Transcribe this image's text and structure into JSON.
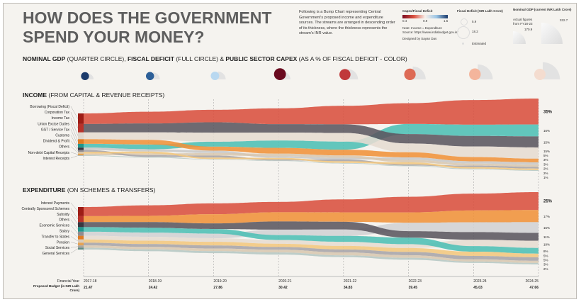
{
  "title": "HOW DOES THE GOVERNMENT SPEND YOUR MONEY?",
  "description": "Following is a Bump Chart representing Central Government's proposed income and expenditure sources. The streams are arranged in descending order of its thickness, where the thickness represents the stream's INR value.",
  "legend": {
    "capex_title": "Capex/Fiscal Deficit",
    "capex_ticks": [
      "0.4",
      "0.9",
      "1.5"
    ],
    "note": "Note: Income = Expenditure",
    "source": "Source: https://www.indiabudget.gov.in/",
    "designer": "Designed by Sayan Das",
    "deficit_title": "Fiscal Deficit (INR Lakh Crore)",
    "deficit_small": "5.9",
    "deficit_large": "18.2",
    "estimated": "Estimated",
    "gdp_title": "Nominal GDP (current INR Lakh Crore)",
    "gdp_note": "Actual figures from FY18-23",
    "gdp_small": "170.9",
    "gdp_large": "332.7"
  },
  "indicator_heading": {
    "b1": "NOMINAL GDP",
    "t1": " (QUARTER CIRCLE), ",
    "b2": "FISCAL DEFICIT",
    "t2": " (FULL CIRCLE) & ",
    "b3": "PUBLIC SECTOR CAPEX",
    "t3": " (AS A % OF FISCAL DEFICIT - COLOR)"
  },
  "indicators": {
    "fiscal_deficit": [
      5.9,
      6.2,
      7.0,
      18.2,
      15.1,
      16.6,
      17.3,
      16.1
    ],
    "nominal_gdp": [
      170.9,
      188.9,
      201.0,
      198.0,
      234.7,
      272.4,
      301.8,
      332.7
    ],
    "capex_colors": [
      "#1b3a6b",
      "#2c5f98",
      "#b9d8f0",
      "#6a0a1f",
      "#c0393b",
      "#dd6a55",
      "#f4b59c",
      "#f4dccf"
    ]
  },
  "chart_data": [
    {
      "type": "bump",
      "heading_bold": "INCOME",
      "heading_rest": " (FROM CAPITAL & REVENUE RECEIPTS)",
      "categories": [
        "2017-18",
        "2018-19",
        "2019-20",
        "2020-21",
        "2021-22",
        "2022-23",
        "2023-24",
        "2024-25"
      ],
      "series": [
        {
          "name": "Borrowing (Fiscal Deficit)",
          "color": "#d9503f",
          "lcolor": "#9d1d16",
          "values": [
            25,
            25,
            25,
            30,
            32,
            33,
            35,
            35
          ],
          "end_label": "35%"
        },
        {
          "name": "Corporation Tax",
          "color": "#5b5660",
          "lcolor": "#b8322a",
          "values": [
            20,
            19,
            21,
            16,
            15,
            15,
            15,
            15
          ],
          "end_label": "15%"
        },
        {
          "name": "Income Tax",
          "color": "#e6dcd1",
          "lcolor": "#e0d6cc",
          "values": [
            16,
            16,
            18,
            15,
            15,
            14,
            15,
            15
          ],
          "end_label": "15%"
        },
        {
          "name": "Union Excise Duties",
          "color": "#f0923a",
          "lcolor": "#e07b22",
          "values": [
            11,
            10,
            8,
            11,
            10,
            8,
            6,
            5
          ],
          "end_label": "5%"
        },
        {
          "name": "GST / Service Tax",
          "color": "#4dbfb5",
          "lcolor": "#22968c",
          "values": [
            9,
            10,
            10,
            14,
            14,
            16,
            16,
            16
          ],
          "end_label": "16%"
        },
        {
          "name": "Customs",
          "color": "#c8c8c8",
          "lcolor": "#3a3740",
          "values": [
            5.5,
            5,
            5,
            3,
            3,
            4,
            3.2,
            3.2
          ],
          "end_label": "3%"
        },
        {
          "name": "Dividend & Profit",
          "color": "#a7a4a8",
          "lcolor": "#8f8c90",
          "values": [
            4.5,
            3,
            4,
            2,
            3,
            2,
            2.2,
            2.2
          ],
          "end_label": "2%"
        },
        {
          "name": "Others",
          "color": "#f3c77e",
          "lcolor": "#d8c6a8",
          "values": [
            4.2,
            4,
            3,
            3,
            3,
            3,
            2,
            2
          ],
          "end_label": "2%"
        },
        {
          "name": "Non-debt Capital Receipts",
          "color": "#d8c7b0",
          "lcolor": "#e5a354",
          "values": [
            4,
            4,
            5,
            5,
            4,
            4,
            3,
            3
          ],
          "end_label": "3%"
        },
        {
          "name": "Interest Receipts",
          "color": "#b5c7c4",
          "lcolor": "#aab8b5",
          "values": [
            1.5,
            2,
            1,
            1,
            1,
            1,
            1,
            1
          ],
          "end_label": "1%"
        }
      ]
    },
    {
      "type": "bump",
      "heading_bold": "EXPENDITURE",
      "heading_rest": " (ON SCHEMES & TRANSFERS)",
      "categories": [
        "2017-18",
        "2018-19",
        "2019-20",
        "2020-21",
        "2021-22",
        "2022-23",
        "2023-24",
        "2024-25"
      ],
      "series": [
        {
          "name": "Interest Payments",
          "color": "#d9503f",
          "lcolor": "#9d1d16",
          "values": [
            20,
            22,
            21,
            19,
            22,
            24,
            24,
            25
          ],
          "end_label": "25%"
        },
        {
          "name": "Centrally Sponsored Schemes",
          "color": "#f0923a",
          "lcolor": "#b8322a",
          "values": [
            13,
            13,
            18,
            17,
            16,
            16,
            17,
            17
          ],
          "end_label": "17%"
        },
        {
          "name": "Subsidy",
          "color": "#5b5660",
          "lcolor": "#3a3740",
          "values": [
            11,
            12,
            11,
            15,
            13,
            10,
            11,
            11
          ],
          "end_label": "11%"
        },
        {
          "name": "Others",
          "color": "#4dbfb5",
          "lcolor": "#22968c",
          "values": [
            10,
            10,
            9,
            9,
            10,
            10,
            8,
            8
          ],
          "end_label": "8%"
        },
        {
          "name": "Economic Services",
          "color": "#d2d2d4",
          "lcolor": "#8f8c90",
          "values": [
            9,
            9,
            9,
            10,
            11,
            13,
            14,
            15
          ],
          "end_label": "15%"
        },
        {
          "name": "Salary",
          "color": "#e6dcd1",
          "lcolor": "#e07b22",
          "values": [
            8,
            8,
            7,
            7,
            7,
            6,
            9,
            10
          ],
          "end_label": "10%"
        },
        {
          "name": "Transfer to States",
          "color": "#f3c77e",
          "lcolor": "#d8cbbb",
          "values": [
            7,
            7,
            7,
            6,
            6,
            6,
            6,
            5
          ],
          "end_label": "5%"
        },
        {
          "name": "Pension",
          "color": "#a7a4a8",
          "lcolor": "#e5a354",
          "values": [
            6,
            6,
            6,
            5,
            5,
            5,
            5,
            5
          ],
          "end_label": "5%"
        },
        {
          "name": "Social Services",
          "color": "#d8c7b0",
          "lcolor": "#a9a5a0",
          "values": [
            5,
            5,
            5,
            5,
            5,
            4,
            3,
            3
          ],
          "end_label": "3%"
        },
        {
          "name": "General Services",
          "color": "#b5c7c4",
          "lcolor": "#5f8c84",
          "values": [
            4,
            4,
            4,
            4,
            3,
            3,
            2,
            2
          ],
          "end_label": "2%"
        }
      ]
    }
  ],
  "axis": {
    "year_label": "Financial Year",
    "budget_label": "Proposed Budget (in INR Lakh Crore)",
    "years": [
      "2017-18",
      "2018-19",
      "2019-20",
      "2020-21",
      "2021-22",
      "2022-23",
      "2023-24",
      "2024-25"
    ],
    "budget": [
      "21.47",
      "24.42",
      "27.86",
      "30.42",
      "34.83",
      "39.45",
      "45.03",
      "47.66"
    ]
  }
}
